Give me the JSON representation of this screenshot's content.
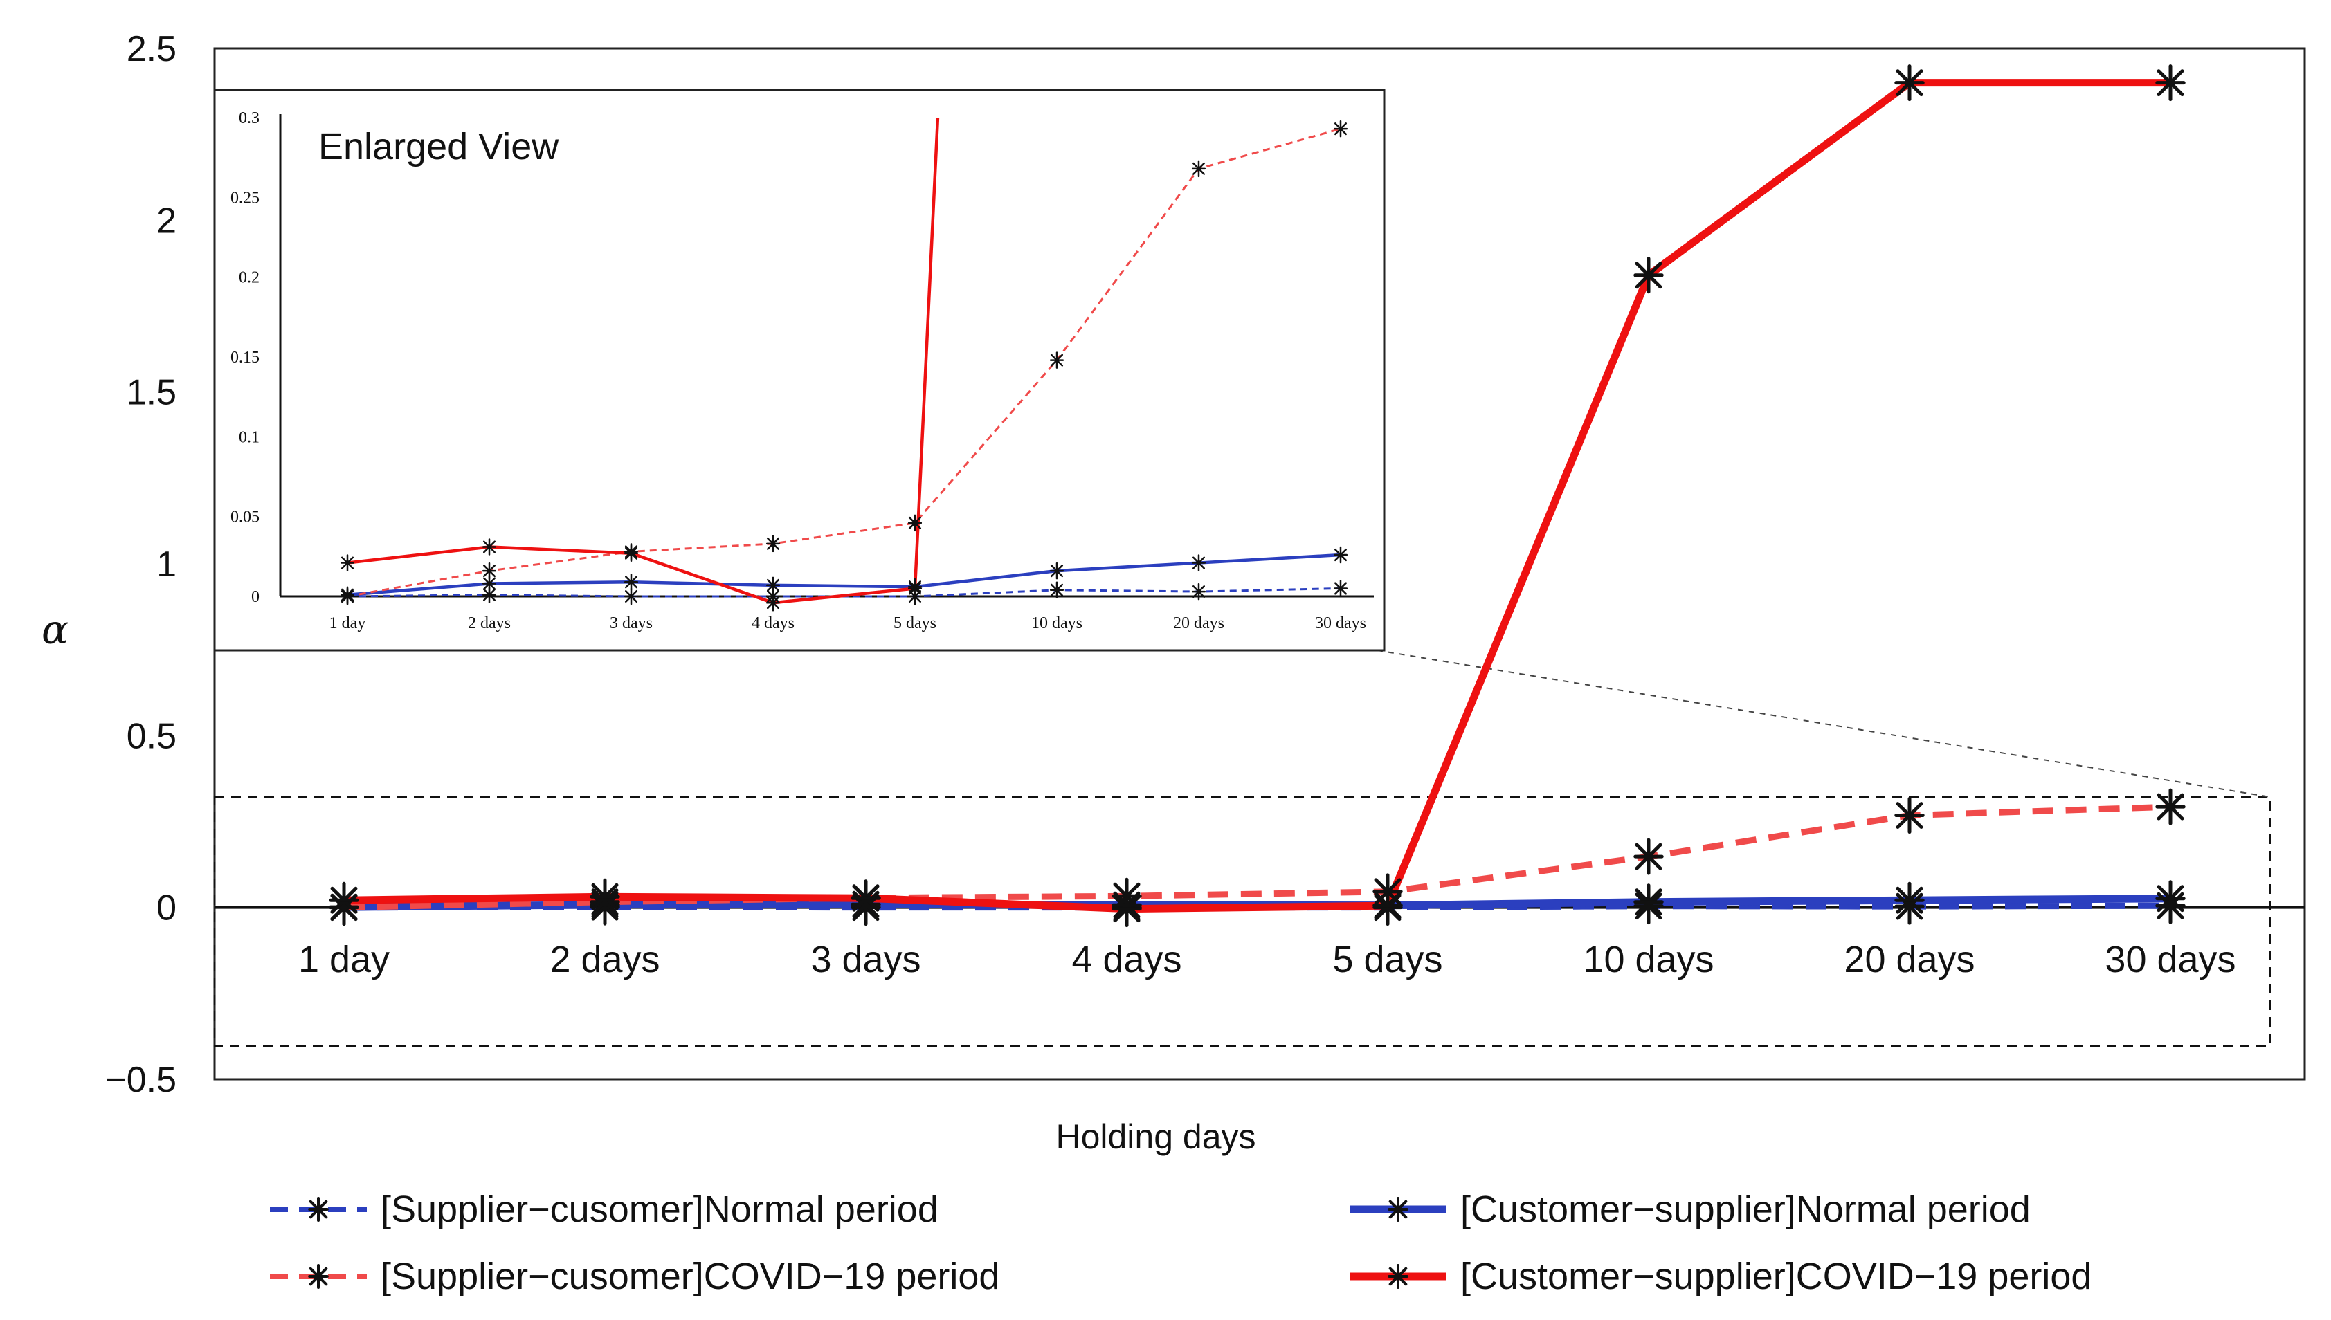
{
  "chart_data": {
    "type": "line",
    "xlabel": "Holding days",
    "ylabel": "α",
    "ylim": [
      -0.5,
      2.5
    ],
    "yticks": [
      "2.5",
      "2",
      "1.5",
      "1",
      "0.5",
      "0",
      "−0.5"
    ],
    "ytick_values": [
      2.5,
      2,
      1.5,
      1,
      0.5,
      0,
      -0.5
    ],
    "categories": [
      "1 day",
      "2 days",
      "3 days",
      "4 days",
      "5 days",
      "10 days",
      "20 days",
      "30 days"
    ],
    "series": [
      {
        "name": "[Supplier−cusomer]Normal period",
        "color": "#2b3fbf",
        "dash": true,
        "values": [
          0.0,
          0.001,
          0.0,
          0.0,
          0.0,
          0.004,
          0.003,
          0.005
        ]
      },
      {
        "name": "[Customer−supplier]Normal period",
        "color": "#2b3fbf",
        "dash": false,
        "values": [
          0.001,
          0.008,
          0.009,
          0.007,
          0.006,
          0.016,
          0.021,
          0.026
        ]
      },
      {
        "name": "[Supplier−cusomer]COVID−19 period",
        "color": "#f04a4a",
        "dash": true,
        "values": [
          0.0,
          0.016,
          0.028,
          0.033,
          0.046,
          0.148,
          0.268,
          0.293
        ]
      },
      {
        "name": "[Customer−supplier]COVID−19 period",
        "color": "#ee1111",
        "dash": false,
        "values": [
          0.021,
          0.031,
          0.027,
          -0.004,
          0.005,
          1.84,
          2.4,
          2.4
        ]
      }
    ],
    "inset": {
      "title": "Enlarged View",
      "ylim": [
        0,
        0.3
      ],
      "yticks": [
        "0.3",
        "0.25",
        "0.2",
        "0.15",
        "0.1",
        "0.05",
        "0"
      ],
      "ytick_values": [
        0.3,
        0.25,
        0.2,
        0.15,
        0.1,
        0.05,
        0
      ]
    },
    "legend_position": "bottom"
  }
}
